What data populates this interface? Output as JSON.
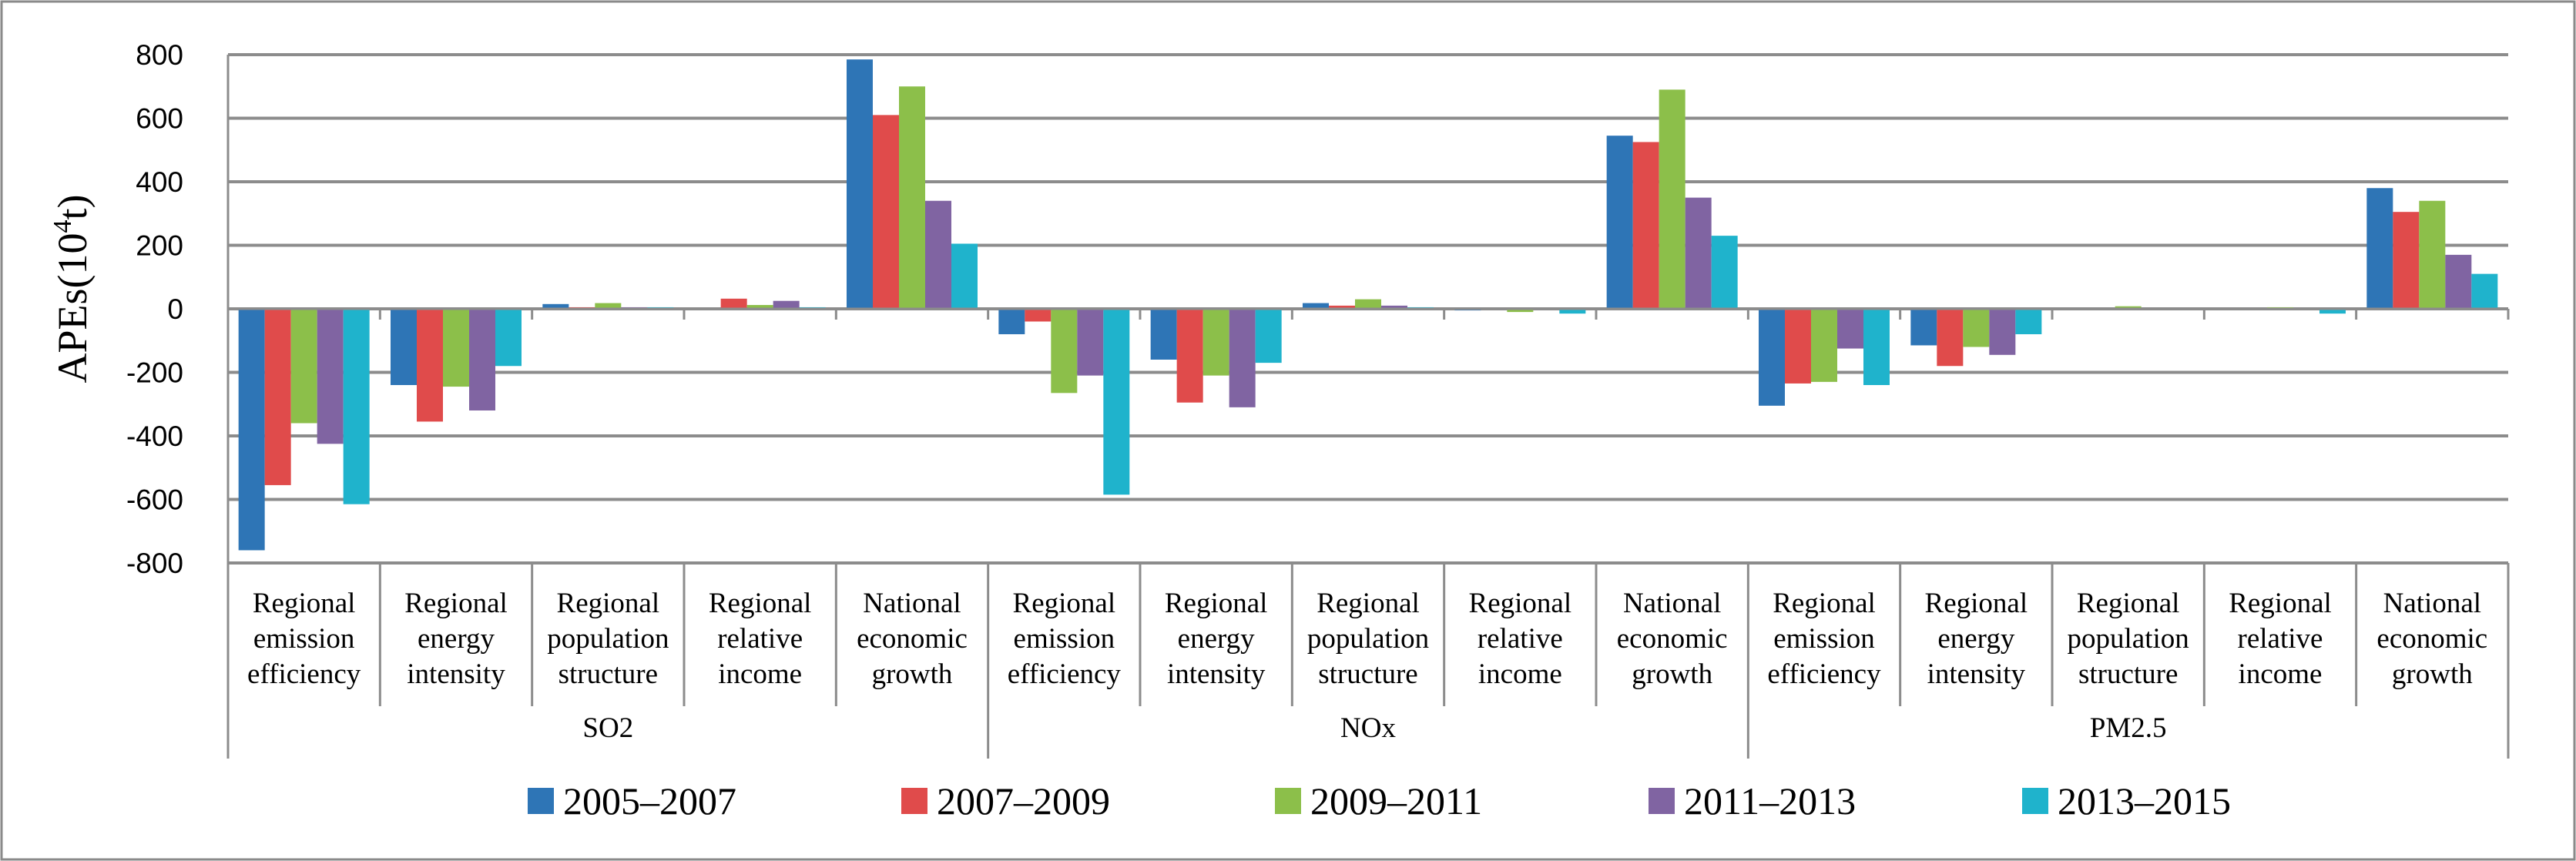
{
  "chart_data": {
    "type": "bar",
    "title": "",
    "xlabel": "",
    "ylabel_main": "APEs(10",
    "ylabel_sup": "4",
    "ylabel_tail": "t)",
    "ylim": [
      -800,
      800
    ],
    "yticks": [
      -800,
      -600,
      -400,
      -200,
      0,
      200,
      400,
      600,
      800
    ],
    "grid": true,
    "legend_position": "bottom",
    "groups": [
      {
        "name": "SO2",
        "categories": [
          [
            "Regional",
            "emission",
            "efficiency"
          ],
          [
            "Regional",
            "energy",
            "intensity"
          ],
          [
            "Regional",
            "population",
            "structure"
          ],
          [
            "Regional",
            "relative",
            "income"
          ],
          [
            "National",
            "economic",
            "growth"
          ]
        ]
      },
      {
        "name": "NOx",
        "categories": [
          [
            "Regional",
            "emission",
            "efficiency"
          ],
          [
            "Regional",
            "energy",
            "intensity"
          ],
          [
            "Regional",
            "population",
            "structure"
          ],
          [
            "Regional",
            "relative",
            "income"
          ],
          [
            "National",
            "economic",
            "growth"
          ]
        ]
      },
      {
        "name": "PM2.5",
        "categories": [
          [
            "Regional",
            "emission",
            "efficiency"
          ],
          [
            "Regional",
            "energy",
            "intensity"
          ],
          [
            "Regional",
            "population",
            "structure"
          ],
          [
            "Regional",
            "relative",
            "income"
          ],
          [
            "National",
            "economic",
            "growth"
          ]
        ]
      }
    ],
    "series": [
      {
        "name": "2005–2007",
        "color": "#2E75B6",
        "values": [
          -760,
          -240,
          15,
          0,
          785,
          -80,
          -160,
          18,
          -5,
          545,
          -305,
          -115,
          0,
          0,
          380
        ]
      },
      {
        "name": "2007–2009",
        "color": "#E04B4B",
        "values": [
          -555,
          -355,
          5,
          32,
          610,
          -40,
          -295,
          10,
          0,
          525,
          -235,
          -180,
          0,
          0,
          305
        ]
      },
      {
        "name": "2009–2011",
        "color": "#8CBF4A",
        "values": [
          -360,
          -245,
          18,
          12,
          700,
          -265,
          -210,
          30,
          -10,
          690,
          -230,
          -120,
          8,
          5,
          340
        ]
      },
      {
        "name": "2011–2013",
        "color": "#8064A2",
        "values": [
          -425,
          -320,
          5,
          25,
          340,
          -210,
          -310,
          10,
          0,
          350,
          -125,
          -145,
          0,
          3,
          170
        ]
      },
      {
        "name": "2013–2015",
        "color": "#1FB3CC",
        "values": [
          -615,
          -180,
          5,
          5,
          205,
          -585,
          -170,
          5,
          -15,
          230,
          -240,
          -80,
          0,
          -15,
          110
        ]
      }
    ]
  }
}
